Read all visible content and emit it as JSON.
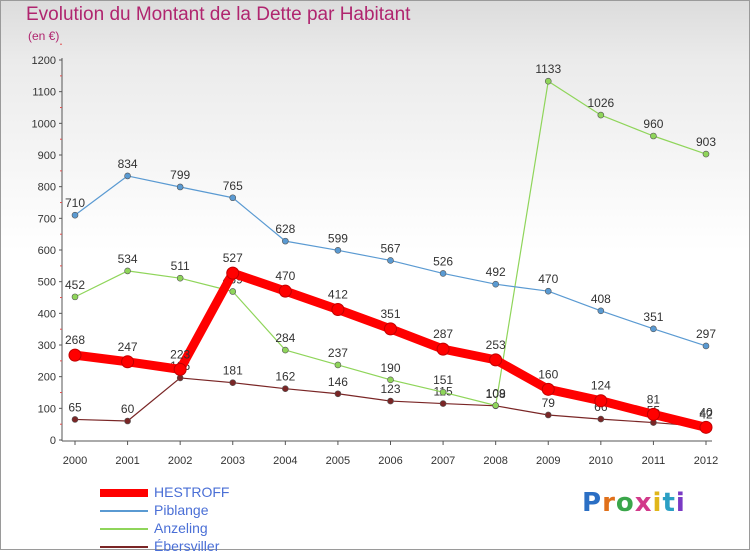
{
  "title": "Evolution du Montant de la Dette par Habitant",
  "unit_label": "(en €)",
  "logo_text": "Proxiti",
  "chart_data": {
    "type": "line",
    "title": "Evolution du Montant de la Dette par Habitant",
    "ylabel": "(en €)",
    "xlabel": "",
    "x": [
      "2000",
      "2001",
      "2002",
      "2003",
      "2004",
      "2005",
      "2006",
      "2007",
      "2008",
      "2009",
      "2010",
      "2011",
      "2012"
    ],
    "ylim": [
      0,
      1200
    ],
    "yticks": [
      0,
      100,
      200,
      300,
      400,
      500,
      600,
      700,
      800,
      900,
      1000,
      1100,
      1200
    ],
    "grid": false,
    "legend_position": "bottom-left",
    "series": [
      {
        "name": "HESTROFF",
        "color": "#ff0000",
        "values": [
          268,
          247,
          223,
          527,
          470,
          412,
          351,
          287,
          253,
          160,
          124,
          81,
          40
        ],
        "labels": [
          "268",
          "247",
          "223",
          "527",
          "470",
          "412",
          "351",
          "287",
          "253",
          "160",
          "124",
          "81",
          "40"
        ]
      },
      {
        "name": "Piblange",
        "color": "#5a9ad2",
        "values": [
          710,
          834,
          799,
          765,
          628,
          599,
          567,
          526,
          492,
          470,
          408,
          351,
          297
        ],
        "labels": [
          "710",
          "834",
          "799",
          "765",
          "628",
          "599",
          "567",
          "526",
          "492",
          "470",
          "408",
          "351",
          "297"
        ]
      },
      {
        "name": "Anzeling",
        "color": "#8fd55a",
        "values": [
          452,
          534,
          511,
          469,
          284,
          237,
          190,
          151,
          109,
          1133,
          1026,
          960,
          903
        ],
        "labels": [
          "452",
          "534",
          "511",
          "469",
          "284",
          "237",
          "190",
          "151",
          "109",
          "1133",
          "1026",
          "960",
          "903"
        ]
      },
      {
        "name": "Ébersviller",
        "color": "#7a2626",
        "values": [
          65,
          60,
          196,
          181,
          162,
          146,
          123,
          115,
          108,
          79,
          66,
          55,
          42
        ],
        "labels": [
          "65",
          "60",
          "196",
          "181",
          "162",
          "146",
          "123",
          "115",
          "108",
          "79",
          "66",
          "55",
          "42"
        ]
      }
    ]
  }
}
